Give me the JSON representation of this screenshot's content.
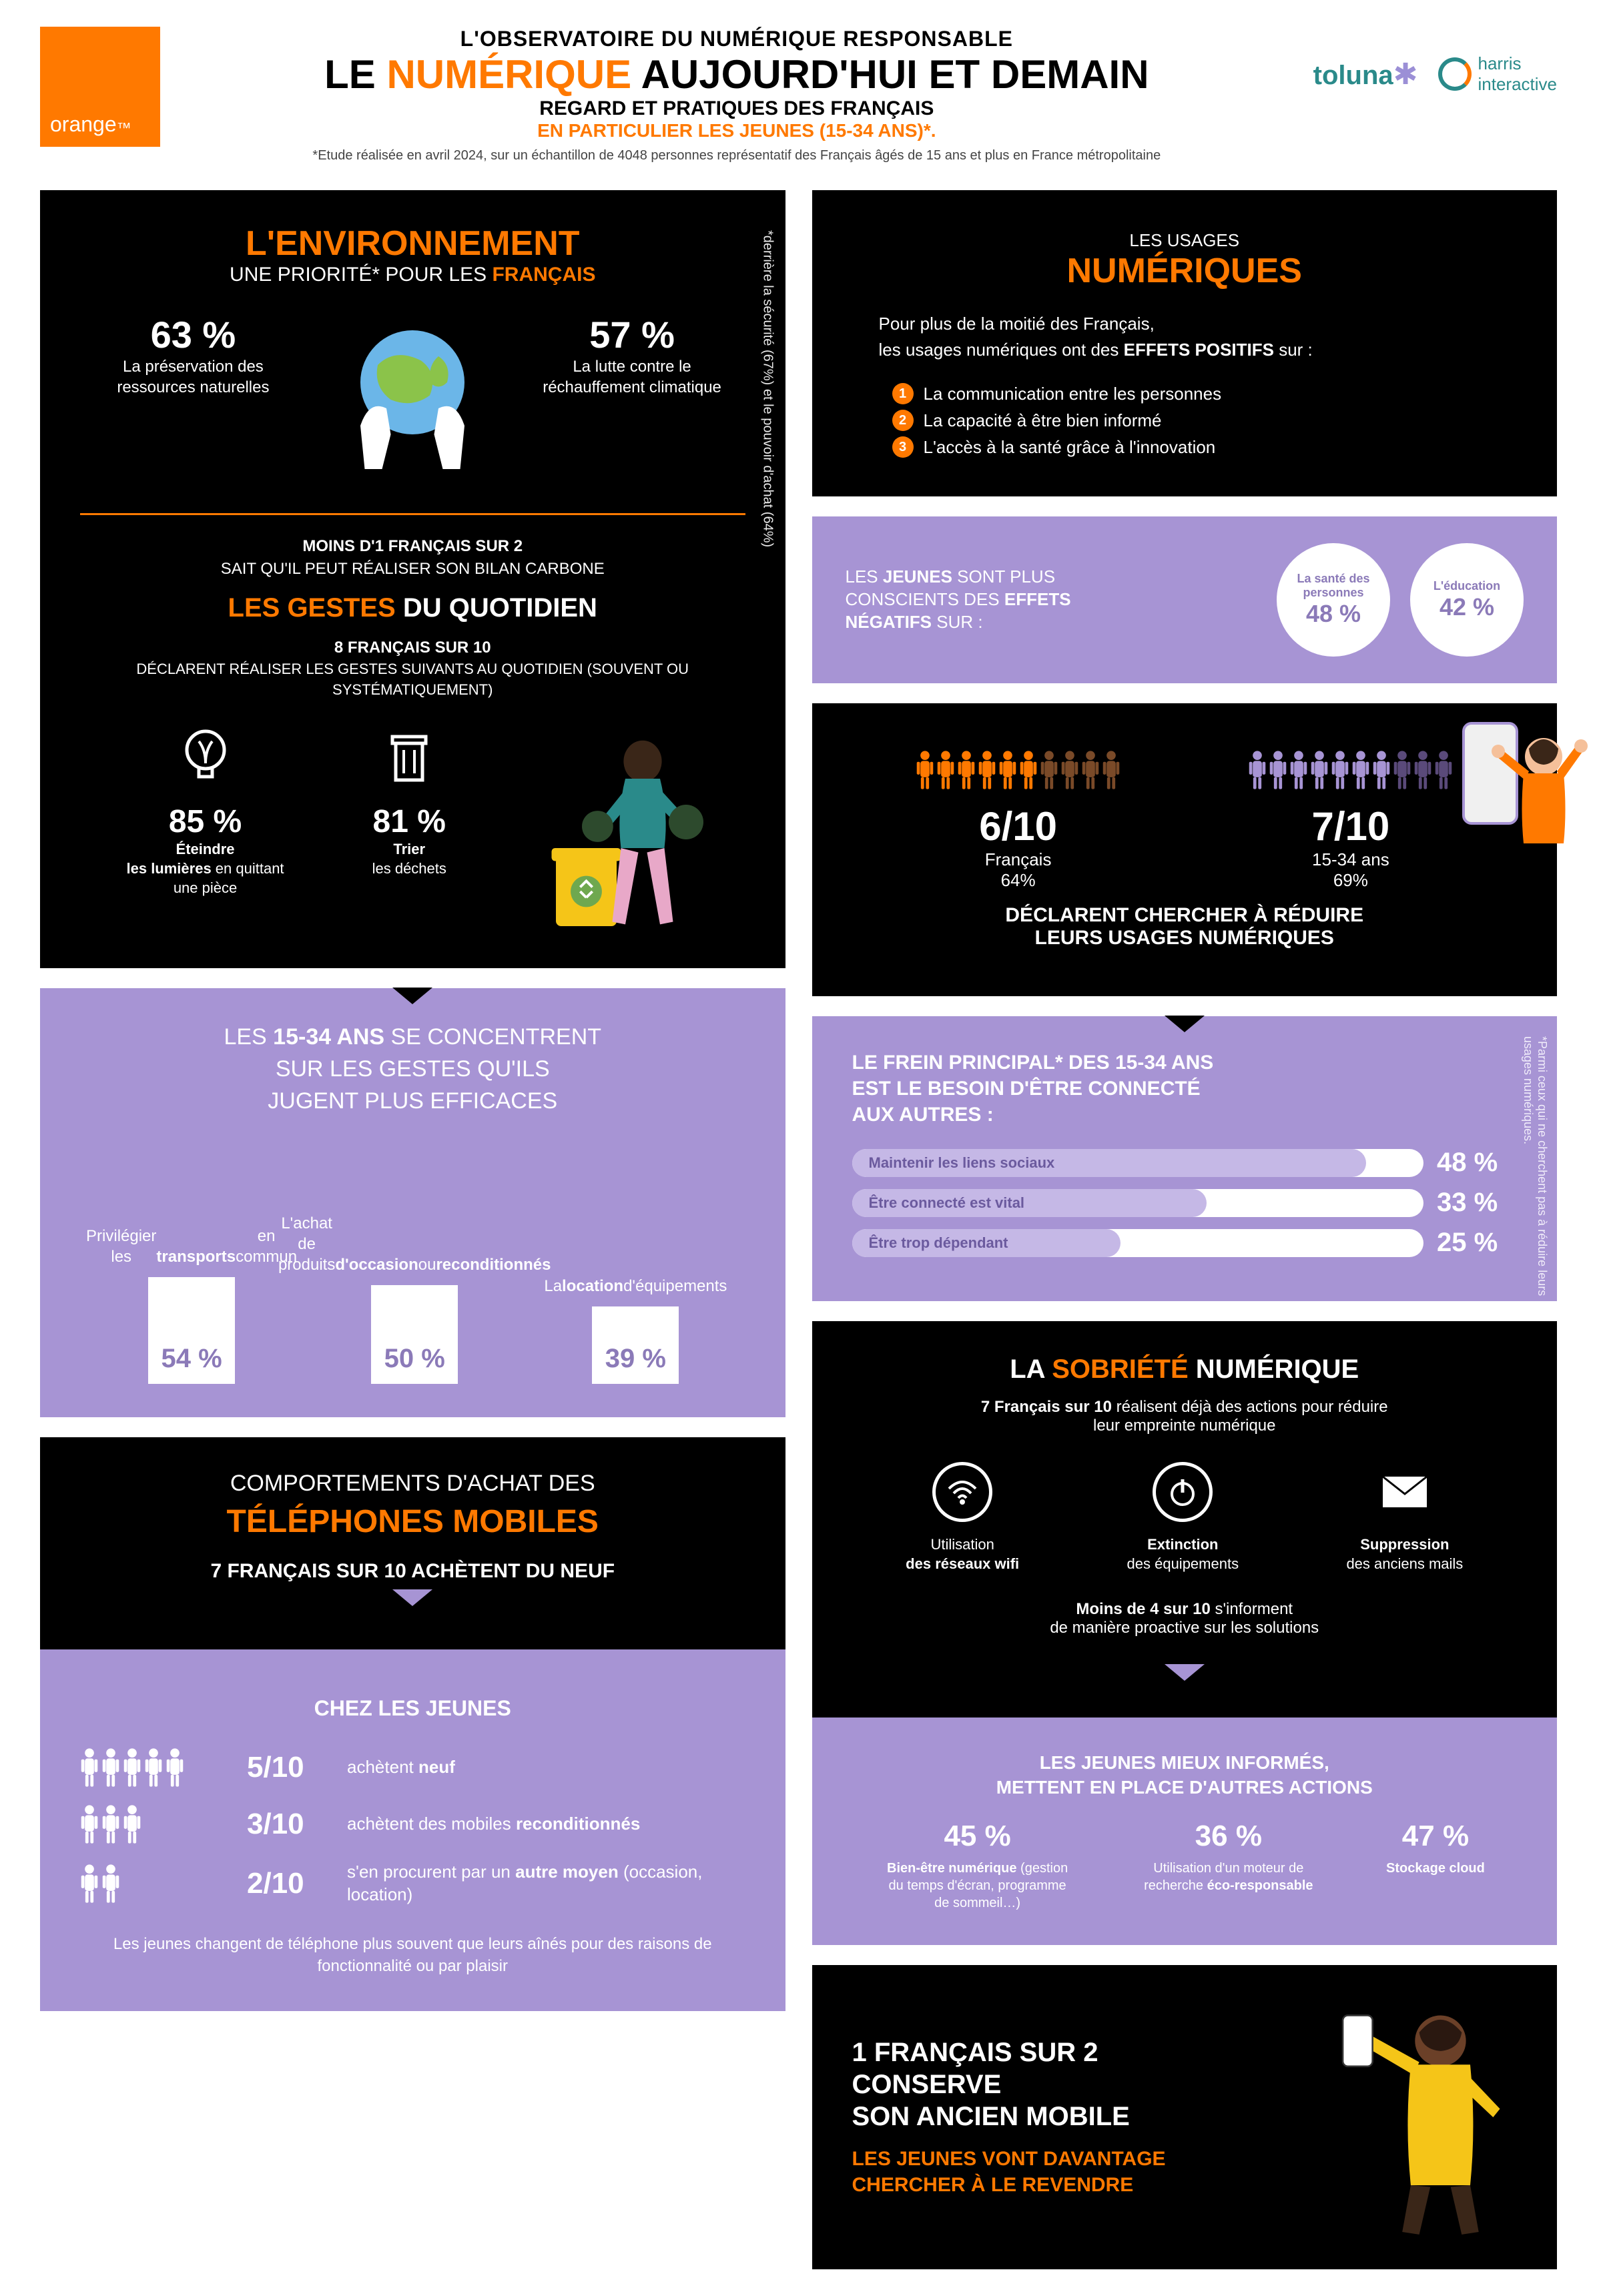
{
  "header": {
    "logo": "orange",
    "h1": "L'OBSERVATOIRE DU NUMÉRIQUE RESPONSABLE",
    "h2_a": "LE ",
    "h2_b": "NUMÉRIQUE",
    "h2_c": " AUJOURD'HUI ET DEMAIN",
    "h3": "REGARD ET PRATIQUES DES FRANÇAIS",
    "h4": "EN PARTICULIER LES JEUNES (15-34 ANS)*.",
    "note": "*Etude réalisée en avril 2024, sur un échantillon de 4048 personnes représentatif des Français âgés de 15 ans et plus en France métropolitaine",
    "toluna": "toluna",
    "harris1": "harris",
    "harris2": "interactive"
  },
  "env": {
    "title": "L'ENVIRONNEMENT",
    "sub_a": "UNE PRIORITÉ* POUR LES ",
    "sub_b": "FRANÇAIS",
    "stat1_pct": "63 %",
    "stat1_txt": "La préservation des ressources naturelles",
    "stat2_pct": "57 %",
    "stat2_txt": "La lutte contre le réchauffement climatique",
    "side": "*derrière la sécurité (67%) et le pouvoir d'achat (64%)",
    "mid1": "MOINS D'1 FRANÇAIS SUR 2",
    "mid2": "SAIT QU'IL PEUT RÉALISER SON BILAN CARBONE",
    "gestes_title": "LES GESTES DU QUOTIDIEN",
    "gestes_sub1": "8 FRANÇAIS SUR 10",
    "gestes_sub2": "DÉCLARENT RÉALISER LES GESTES SUIVANTS AU QUOTIDIEN (SOUVENT OU SYSTÉMATIQUEMENT)",
    "g1_pct": "85 %",
    "g1_txt_a": "Éteindre",
    "g1_txt_b": "les lumières",
    "g1_txt_c": " en quittant une pièce",
    "g2_pct": "81 %",
    "g2_txt_a": "Trier",
    "g2_txt_b": "les déchets"
  },
  "jeunes": {
    "title": "LES 15-34 ANS SE CONCENTRENT SUR LES GESTES QU'ILS JUGENT PLUS EFFICACES",
    "bars": [
      {
        "txt": "Privilégier les <b>transports</b> en commun",
        "pct": "54 %",
        "h": 160
      },
      {
        "txt": "L'achat de produits <b>d'occasion</b> ou <b>reconditionnés</b>",
        "pct": "50 %",
        "h": 148
      },
      {
        "txt": "La <b>location</b> d'équipements",
        "pct": "39 %",
        "h": 116
      }
    ]
  },
  "tel": {
    "title1": "COMPORTEMENTS D'ACHAT DES",
    "title2": "TÉLÉPHONES MOBILES",
    "sub": "7 FRANÇAIS SUR 10 ACHÈTENT DU NEUF"
  },
  "chez": {
    "title": "CHEZ LES JEUNES",
    "rows": [
      {
        "n": 5,
        "ratio": "5/10",
        "txt": "achètent <b>neuf</b>"
      },
      {
        "n": 3,
        "ratio": "3/10",
        "txt": "achètent des mobiles <b>reconditionnés</b>"
      },
      {
        "n": 2,
        "ratio": "2/10",
        "txt": "s'en procurent par un <b>autre moyen</b> (occasion, location)"
      }
    ],
    "note": "Les jeunes changent de téléphone plus souvent que leurs aînés pour des raisons de fonctionnalité ou par plaisir"
  },
  "usages": {
    "sub": "LES USAGES",
    "title": "NUMÉRIQUES",
    "intro": "Pour plus de la moitié des Français,\nles usages numériques ont des <b>EFFETS POSITIFS</b> sur :",
    "items": [
      "La communication entre les personnes",
      "La capacité à être bien informé",
      "L'accès à la santé grâce à l'innovation"
    ]
  },
  "neg": {
    "txt": "LES <b>JEUNES</b> SONT PLUS CONSCIENTS DES <b>EFFETS NÉGATIFS</b> SUR :",
    "c1_lbl": "La santé des personnes",
    "c1_pct": "48 %",
    "c2_lbl": "L'éducation",
    "c2_pct": "42 %"
  },
  "reduce": {
    "r1_big": "6/10",
    "r1_lbl": "Français",
    "r1_pct": "64%",
    "r2_big": "7/10",
    "r2_lbl": "15-34 ans",
    "r2_pct": "69%",
    "declare": "DÉCLARENT CHERCHER <b>À RÉDUIRE</b> LEURS USAGES NUMÉRIQUES"
  },
  "frein": {
    "title": "LE FREIN PRINCIPAL* DES 15-34 ANS EST LE BESOIN D'ÊTRE CONNECTÉ AUX AUTRES :",
    "side": "*Parmi ceux qui ne cherchent pas à réduire leurs usages numériques.",
    "bars": [
      {
        "lbl": "Maintenir les liens sociaux",
        "pct": "48 %",
        "w": 90
      },
      {
        "lbl": "Être connecté est vital",
        "pct": "33 %",
        "w": 62
      },
      {
        "lbl": "Être trop dépendant",
        "pct": "25 %",
        "w": 47
      }
    ]
  },
  "sobriete": {
    "title_a": "LA ",
    "title_b": "SOBRIÉTÉ",
    "title_c": " NUMÉRIQUE",
    "sub": "<b>7 Français sur 10</b> réalisent déjà des actions pour réduire leur empreinte numérique",
    "icons": [
      {
        "lbl": "Utilisation <b>des réseaux wifi</b>"
      },
      {
        "lbl": "<b>Extinction</b> des équipements"
      },
      {
        "lbl": "<b>Suppression</b> des anciens mails"
      }
    ],
    "moins": "<b>Moins de 4 sur 10</b> s'informent de manière proactive sur les solutions"
  },
  "young_actions": {
    "title": "LES <b>JEUNES</b> MIEUX INFORMÉS, METTENT EN PLACE D'AUTRES ACTIONS",
    "stats": [
      {
        "pct": "45 %",
        "lbl": "<b>Bien-être numérique</b> (gestion du temps d'écran, programme de sommeil…)"
      },
      {
        "pct": "36 %",
        "lbl": "Utilisation d'un moteur de recherche <b>éco-responsable</b>"
      },
      {
        "pct": "47 %",
        "lbl": "<b>Stockage cloud</b>"
      }
    ]
  },
  "final": {
    "h": "1 FRANÇAIS SUR 2 CONSERVE SON ANCIEN MOBILE",
    "sub": "LES JEUNES VONT DAVANTAGE CHERCHER À LE REVENDRE"
  },
  "colors": {
    "orange": "#ff7900",
    "purple": "#a794d4",
    "purple_dark": "#8b7ab8",
    "black": "#000000"
  }
}
